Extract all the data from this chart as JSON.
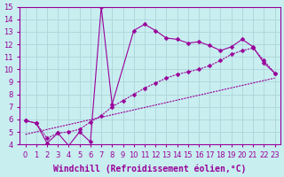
{
  "xlabel": "Windchill (Refroidissement éolien,°C)",
  "bg_color": "#c8eef0",
  "grid_color": "#b0d8dc",
  "line_color": "#990099",
  "xlim": [
    -0.5,
    23.5
  ],
  "ylim": [
    4,
    15
  ],
  "xticks": [
    0,
    1,
    2,
    3,
    4,
    5,
    6,
    7,
    8,
    9,
    10,
    11,
    12,
    13,
    14,
    15,
    16,
    17,
    18,
    19,
    20,
    21,
    22,
    23
  ],
  "yticks": [
    4,
    5,
    6,
    7,
    8,
    9,
    10,
    11,
    12,
    13,
    14,
    15
  ],
  "curve1_x": [
    0,
    1,
    2,
    3,
    4,
    5,
    6,
    7,
    8,
    10,
    11,
    12,
    13,
    14,
    15,
    16,
    17,
    18,
    19,
    20,
    21,
    22,
    23
  ],
  "curve1_y": [
    5.9,
    5.7,
    4.1,
    4.9,
    3.9,
    5.0,
    4.2,
    15.0,
    7.2,
    13.1,
    13.6,
    13.1,
    12.5,
    12.4,
    12.1,
    12.2,
    11.9,
    11.5,
    11.8,
    12.4,
    11.8,
    10.5,
    9.7
  ],
  "curve2_x": [
    0,
    1,
    2,
    3,
    4,
    5,
    6,
    7,
    8,
    9,
    10,
    11,
    12,
    13,
    14,
    15,
    16,
    17,
    18,
    19,
    20,
    21,
    22,
    23
  ],
  "curve2_y": [
    5.9,
    5.7,
    4.5,
    4.9,
    5.0,
    5.2,
    5.8,
    6.3,
    7.0,
    7.5,
    8.0,
    8.5,
    8.9,
    9.3,
    9.6,
    9.8,
    10.0,
    10.3,
    10.7,
    11.2,
    11.5,
    11.7,
    10.7,
    9.7
  ],
  "curve3_x": [
    0,
    23
  ],
  "curve3_y": [
    4.8,
    9.3
  ],
  "fontsize_label": 7,
  "fontsize_tick": 6,
  "markersize": 2.5
}
